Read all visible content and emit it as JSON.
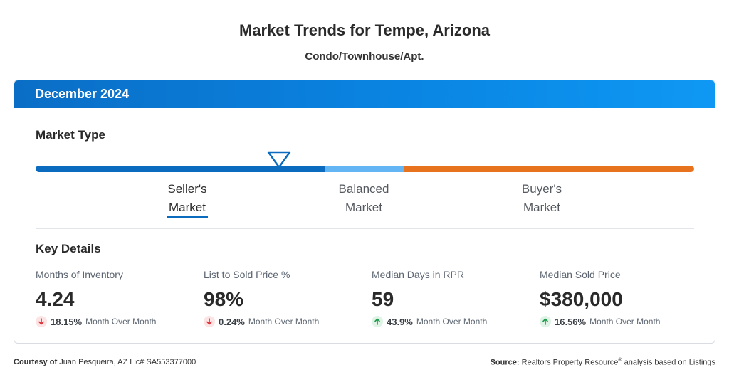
{
  "header": {
    "title": "Market Trends for Tempe, Arizona",
    "subtitle": "Condo/Townhouse/Apt."
  },
  "card": {
    "period": "December 2024",
    "market_type": {
      "heading": "Market Type",
      "labels": [
        {
          "line1": "Seller's",
          "line2": "Market",
          "active": true
        },
        {
          "line1": "Balanced",
          "line2": "Market",
          "active": false
        },
        {
          "line1": "Buyer's",
          "line2": "Market",
          "active": false
        }
      ],
      "colors": {
        "seller": "#0b6bbf",
        "balanced": "#63b6f3",
        "buyer": "#e8731f"
      },
      "indicator_position": 0.37
    },
    "key_details": {
      "heading": "Key Details",
      "metrics": [
        {
          "name": "Months of Inventory",
          "value": "4.24",
          "direction": "down",
          "change": "18.15%",
          "period": "Month Over Month"
        },
        {
          "name": "List to Sold Price %",
          "value": "98%",
          "direction": "down",
          "change": "0.24%",
          "period": "Month Over Month"
        },
        {
          "name": "Median Days in RPR",
          "value": "59",
          "direction": "up",
          "change": "43.9%",
          "period": "Month Over Month"
        },
        {
          "name": "Median Sold Price",
          "value": "$380,000",
          "direction": "up",
          "change": "16.56%",
          "period": "Month Over Month"
        }
      ]
    }
  },
  "footer": {
    "courtesy_label": "Courtesy of",
    "courtesy_text": "Juan Pesqueira, AZ Lic# SA553377000",
    "source_label": "Source:",
    "source_text_1": "Realtors Property Resource",
    "source_reg": "®",
    "source_text_2": " analysis based on Listings"
  }
}
